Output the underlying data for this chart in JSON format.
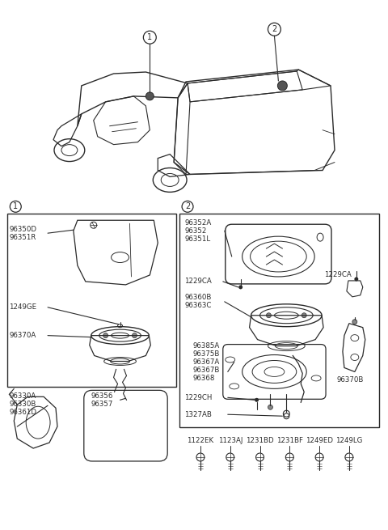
{
  "bg_color": "#ffffff",
  "line_color": "#2a2a2a",
  "fig_width": 4.8,
  "fig_height": 6.55,
  "section1_labels": [
    [
      "96350D",
      "96351R"
    ],
    "1249GE",
    "96370A"
  ],
  "section2_top_labels": [
    "96352A",
    "96352",
    "96351L"
  ],
  "section2_mid_labels": [
    "96360B",
    "96363C"
  ],
  "section2_lower_labels": [
    "96385A",
    "96375B",
    "96367A",
    "96367B",
    "96368"
  ],
  "label_1229CA_left": "1229CA",
  "label_1229CA_right": "1229CA",
  "label_1229CH": "1229CH",
  "label_1327AB": "1327AB",
  "label_96370B": "96370B",
  "mirror_labels": [
    "96330A",
    "96330B",
    "96361D"
  ],
  "mirror2_labels": [
    "96356",
    "96357"
  ],
  "bolt_labels": [
    "1122EK",
    "1123AJ",
    "1231BD",
    "1231BF",
    "1249ED",
    "1249LG"
  ]
}
